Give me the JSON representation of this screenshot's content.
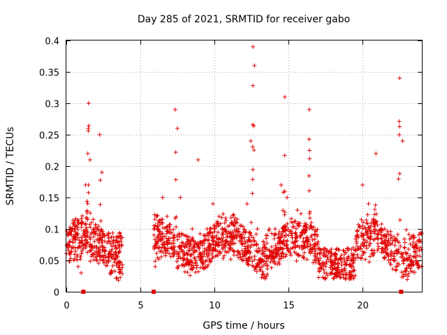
{
  "chart_data": {
    "type": "scatter",
    "title": "Day 285 of 2021, SRMTID for receiver gabo",
    "xlabel": "GPS time / hours",
    "ylabel": "SRMTID / TECUs",
    "xlim": [
      0,
      24
    ],
    "ylim": [
      0,
      0.4
    ],
    "xticks": [
      0,
      5,
      10,
      15,
      20
    ],
    "xtick_labels": [
      "0",
      "5",
      "10",
      "15",
      "20"
    ],
    "yticks": [
      0,
      0.05,
      0.1,
      0.15,
      0.2,
      0.25,
      0.3,
      0.35,
      0.4
    ],
    "ytick_labels": [
      "0",
      "0.05",
      "0.1",
      "0.15",
      "0.2",
      "0.25",
      "0.3",
      "0.35",
      "0.4"
    ],
    "grid": true,
    "marker": "+",
    "color": "#e00000",
    "zero_markers": [
      1.15,
      5.9,
      22.6
    ],
    "series": [
      {
        "name": "SRMTID",
        "segments": [
          {
            "start": 0.0,
            "end": 3.8,
            "count": 360,
            "peaks": [
              [
                1.5,
                0.15,
                0.3
              ],
              [
                2.3,
                0.1,
                0.25
              ]
            ]
          },
          {
            "start": 5.9,
            "end": 24.0,
            "count": 1500,
            "peaks": [
              [
                7.4,
                0.12,
                0.29
              ],
              [
                12.6,
                0.15,
                0.39
              ],
              [
                14.7,
                0.12,
                0.31
              ],
              [
                16.4,
                0.1,
                0.29
              ],
              [
                20.9,
                0.1,
                0.22
              ],
              [
                22.5,
                0.15,
                0.34
              ]
            ]
          }
        ],
        "points": [
          [
            0.1,
            0.07
          ],
          [
            0.3,
            0.1
          ],
          [
            0.5,
            0.05
          ],
          [
            0.8,
            0.04
          ],
          [
            1.0,
            0.03
          ],
          [
            1.3,
            0.17
          ],
          [
            1.45,
            0.22
          ],
          [
            1.5,
            0.3
          ],
          [
            1.6,
            0.21
          ],
          [
            1.7,
            0.11
          ],
          [
            1.9,
            0.08
          ],
          [
            2.1,
            0.1
          ],
          [
            2.25,
            0.25
          ],
          [
            2.4,
            0.19
          ],
          [
            2.6,
            0.07
          ],
          [
            2.9,
            0.06
          ],
          [
            3.1,
            0.08
          ],
          [
            3.4,
            0.07
          ],
          [
            3.7,
            0.08
          ],
          [
            6.0,
            0.04
          ],
          [
            6.2,
            0.1
          ],
          [
            6.5,
            0.15
          ],
          [
            6.8,
            0.12
          ],
          [
            7.1,
            0.07
          ],
          [
            7.35,
            0.29
          ],
          [
            7.5,
            0.26
          ],
          [
            7.7,
            0.15
          ],
          [
            7.9,
            0.05
          ],
          [
            8.2,
            0.06
          ],
          [
            8.5,
            0.1
          ],
          [
            8.9,
            0.21
          ],
          [
            9.2,
            0.08
          ],
          [
            9.5,
            0.1
          ],
          [
            9.9,
            0.14
          ],
          [
            10.3,
            0.12
          ],
          [
            10.7,
            0.1
          ],
          [
            11.1,
            0.07
          ],
          [
            11.5,
            0.1
          ],
          [
            11.9,
            0.06
          ],
          [
            12.2,
            0.14
          ],
          [
            12.45,
            0.24
          ],
          [
            12.6,
            0.39
          ],
          [
            12.7,
            0.36
          ],
          [
            12.9,
            0.1
          ],
          [
            13.3,
            0.08
          ],
          [
            13.7,
            0.1
          ],
          [
            14.1,
            0.1
          ],
          [
            14.5,
            0.17
          ],
          [
            14.75,
            0.31
          ],
          [
            14.9,
            0.15
          ],
          [
            15.3,
            0.11
          ],
          [
            15.6,
            0.13
          ],
          [
            16.0,
            0.07
          ],
          [
            16.4,
            0.29
          ],
          [
            16.6,
            0.1
          ],
          [
            17.0,
            0.05
          ],
          [
            17.5,
            0.04
          ],
          [
            17.9,
            0.03
          ],
          [
            18.3,
            0.03
          ],
          [
            18.8,
            0.06
          ],
          [
            19.2,
            0.05
          ],
          [
            19.6,
            0.08
          ],
          [
            20.0,
            0.17
          ],
          [
            20.4,
            0.14
          ],
          [
            20.9,
            0.22
          ],
          [
            21.2,
            0.1
          ],
          [
            21.7,
            0.06
          ],
          [
            22.2,
            0.05
          ],
          [
            22.5,
            0.34
          ],
          [
            22.7,
            0.24
          ],
          [
            23.0,
            0.05
          ]
        ]
      }
    ]
  }
}
